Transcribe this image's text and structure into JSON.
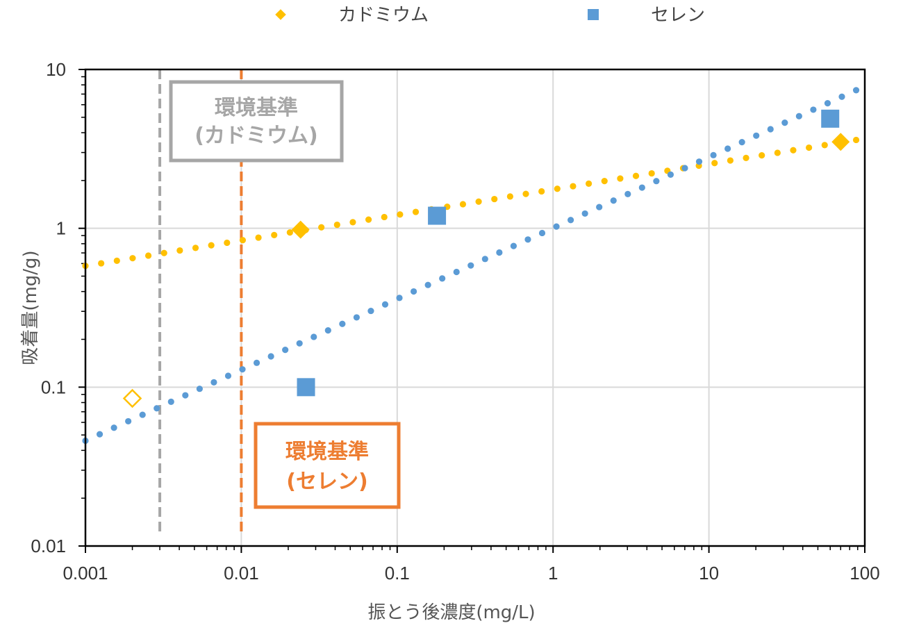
{
  "chart_data": {
    "type": "scatter",
    "x_scale": "log",
    "y_scale": "log",
    "xlim": [
      0.001,
      100
    ],
    "ylim": [
      0.01,
      10
    ],
    "xlabel": "振とう後濃度(mg/L)",
    "ylabel": "吸着量(mg/g)",
    "x_ticks": [
      {
        "value": 0.001,
        "label": "0.001"
      },
      {
        "value": 0.01,
        "label": "0.01"
      },
      {
        "value": 0.1,
        "label": "0.1"
      },
      {
        "value": 1,
        "label": "1"
      },
      {
        "value": 10,
        "label": "10"
      },
      {
        "value": 100,
        "label": "100"
      }
    ],
    "y_ticks": [
      {
        "value": 0.01,
        "label": "0.01"
      },
      {
        "value": 0.1,
        "label": "0.1"
      },
      {
        "value": 1,
        "label": "1"
      },
      {
        "value": 10,
        "label": "10"
      }
    ],
    "legend": {
      "position": "top"
    },
    "series": [
      {
        "name": "カドミウム",
        "color": "#ffc000",
        "marker": "diamond",
        "points": [
          [
            0.024,
            0.98
          ],
          [
            70,
            3.5
          ]
        ],
        "open_points": [
          [
            0.002,
            0.085
          ]
        ],
        "trendline": {
          "type": "power",
          "from": [
            0.001,
            0.58
          ],
          "to": [
            88,
            3.6
          ]
        }
      },
      {
        "name": "セレン",
        "color": "#5b9bd5",
        "marker": "square",
        "points": [
          [
            0.026,
            0.1
          ],
          [
            0.18,
            1.2
          ],
          [
            60,
            4.9
          ]
        ],
        "trendline": {
          "type": "power",
          "from": [
            0.001,
            0.046
          ],
          "to": [
            88,
            7.4
          ]
        }
      }
    ],
    "reference_lines": [
      {
        "axis": "x",
        "value": 0.003,
        "color": "#a6a6a6"
      },
      {
        "axis": "x",
        "value": 0.01,
        "color": "#ed7d31"
      }
    ],
    "annotations": [
      {
        "lines": [
          "環境基準",
          "(カドミウム)"
        ],
        "color": "#a6a6a6"
      },
      {
        "lines": [
          "環境基準",
          "(セレン)"
        ],
        "color": "#ed7d31"
      }
    ]
  }
}
